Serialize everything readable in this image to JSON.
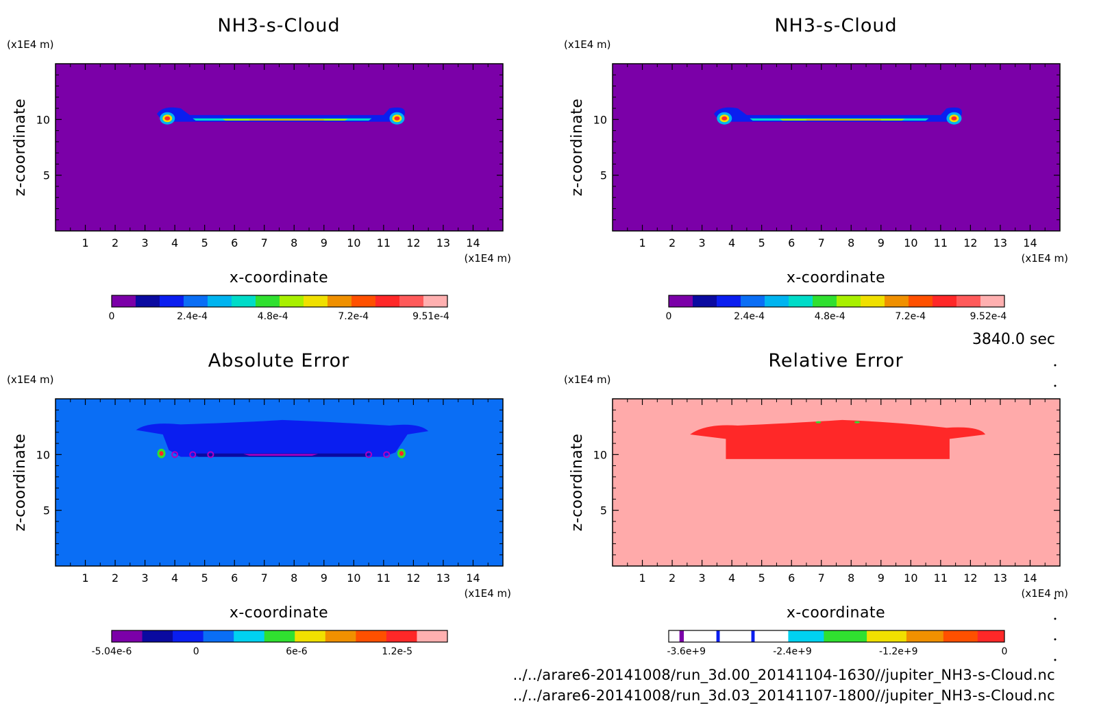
{
  "colors": {
    "frame": "#000000",
    "background": "#ffffff",
    "palette": [
      "#7b00a8",
      "#0a0aa0",
      "#0a1ef0",
      "#0a6ef5",
      "#00b4f0",
      "#00dcc8",
      "#30e030",
      "#a8f000",
      "#f0e000",
      "#f09000",
      "#ff5000",
      "#ff2828",
      "#ff5a5a",
      "#ffb0b0"
    ]
  },
  "icons": [],
  "time_label": "3840.0 sec",
  "file_paths": [
    "../../arare6-20141008/run_3d.00_20141104-1630//jupiter_NH3-s-Cloud.nc",
    "../../arare6-20141008/run_3d.03_20141107-1800//jupiter_NH3-s-Cloud.nc"
  ],
  "chart_data": [
    {
      "type": "heatmap",
      "title": "NH3-s-Cloud",
      "xlabel": "x-coordinate",
      "ylabel": "z-coordinate",
      "x_unit": "(x1E4 m)",
      "y_unit": "(x1E4 m)",
      "xlim": [
        0,
        15
      ],
      "ylim": [
        0,
        15
      ],
      "xticks": [
        "1",
        "2",
        "3",
        "4",
        "5",
        "6",
        "7",
        "8",
        "9",
        "10",
        "11",
        "12",
        "13",
        "14"
      ],
      "yticks": [
        "5",
        "10"
      ],
      "field_background": "#7b00a8",
      "colorbar": {
        "colors": [
          "#7b00a8",
          "#0a0aa0",
          "#0a1ef0",
          "#0a6ef5",
          "#00b4f0",
          "#00dcc8",
          "#30e030",
          "#a8f000",
          "#f0e000",
          "#f09000",
          "#ff5000",
          "#ff2828",
          "#ff5a5a",
          "#ffb0b0"
        ],
        "labels": [
          {
            "text": "0",
            "value": 0
          },
          {
            "text": "2.4e-4",
            "value": 0.24
          },
          {
            "text": "4.8e-4",
            "value": 0.48
          },
          {
            "text": "7.2e-4",
            "value": 0.72
          },
          {
            "text": "9.51e-4",
            "value": 0.951
          }
        ],
        "range": [
          0,
          1.0
        ]
      }
    },
    {
      "type": "heatmap",
      "title": "NH3-s-Cloud",
      "xlabel": "x-coordinate",
      "ylabel": "z-coordinate",
      "x_unit": "(x1E4 m)",
      "y_unit": "(x1E4 m)",
      "xlim": [
        0,
        15
      ],
      "ylim": [
        0,
        15
      ],
      "xticks": [
        "1",
        "2",
        "3",
        "4",
        "5",
        "6",
        "7",
        "8",
        "9",
        "10",
        "11",
        "12",
        "13",
        "14"
      ],
      "yticks": [
        "5",
        "10"
      ],
      "field_background": "#7b00a8",
      "colorbar": {
        "colors": [
          "#7b00a8",
          "#0a0aa0",
          "#0a1ef0",
          "#0a6ef5",
          "#00b4f0",
          "#00dcc8",
          "#30e030",
          "#a8f000",
          "#f0e000",
          "#f09000",
          "#ff5000",
          "#ff2828",
          "#ff5a5a",
          "#ffb0b0"
        ],
        "labels": [
          {
            "text": "0",
            "value": 0
          },
          {
            "text": "2.4e-4",
            "value": 0.24
          },
          {
            "text": "4.8e-4",
            "value": 0.48
          },
          {
            "text": "7.2e-4",
            "value": 0.72
          },
          {
            "text": "9.52e-4",
            "value": 0.952
          }
        ],
        "range": [
          0,
          1.0
        ]
      }
    },
    {
      "type": "heatmap",
      "title": "Absolute Error",
      "xlabel": "x-coordinate",
      "ylabel": "z-coordinate",
      "x_unit": "(x1E4 m)",
      "y_unit": "(x1E4 m)",
      "xlim": [
        0,
        15
      ],
      "ylim": [
        0,
        15
      ],
      "xticks": [
        "1",
        "2",
        "3",
        "4",
        "5",
        "6",
        "7",
        "8",
        "9",
        "10",
        "11",
        "12",
        "13",
        "14"
      ],
      "yticks": [
        "5",
        "10"
      ],
      "field_background": "#0a6ef5",
      "colorbar": {
        "colors": [
          "#7b00a8",
          "#0a0aa0",
          "#0a1ef0",
          "#0a6ef5",
          "#00d2f0",
          "#30e030",
          "#f0e000",
          "#f09000",
          "#ff5000",
          "#ff2828",
          "#ffb0b0"
        ],
        "labels": [
          {
            "text": "-5.04e-6",
            "value": -5.04
          },
          {
            "text": "0",
            "value": 0
          },
          {
            "text": "6e-6",
            "value": 6
          },
          {
            "text": "1.2e-5",
            "value": 12
          }
        ],
        "range": [
          -5.04,
          15.0
        ]
      }
    },
    {
      "type": "heatmap",
      "title": "Relative Error",
      "xlabel": "x-coordinate",
      "ylabel": "z-coordinate",
      "x_unit": "(x1E4 m)",
      "y_unit": "(x1E4 m)",
      "xlim": [
        0,
        15
      ],
      "ylim": [
        0,
        15
      ],
      "xticks": [
        "1",
        "2",
        "3",
        "4",
        "5",
        "6",
        "7",
        "8",
        "9",
        "10",
        "11",
        "12",
        "13",
        "14"
      ],
      "yticks": [
        "5",
        "10"
      ],
      "field_background": "#ffaaaa",
      "colorbar": {
        "colors": [
          "#ffffff",
          "#7b00a8",
          "#ffffff",
          "#0a1ef0",
          "#ffffff",
          "#0a1ef0",
          "#ffffff",
          "#00d2f0",
          "#30e030",
          "#f0e000",
          "#f09000",
          "#ff5000",
          "#ff2828"
        ],
        "segments": [
          0.0,
          0.032,
          0.045,
          0.142,
          0.152,
          0.246,
          0.256,
          0.356,
          0.462,
          0.59,
          0.708,
          0.818,
          0.92,
          1.0
        ],
        "labels": [
          {
            "text": "-3.6e+9",
            "value": -3.6
          },
          {
            "text": "-2.4e+9",
            "value": -2.4
          },
          {
            "text": "-1.2e+9",
            "value": -1.2
          },
          {
            "text": "0",
            "value": 0
          }
        ],
        "range": [
          -3.8,
          0
        ]
      }
    }
  ]
}
